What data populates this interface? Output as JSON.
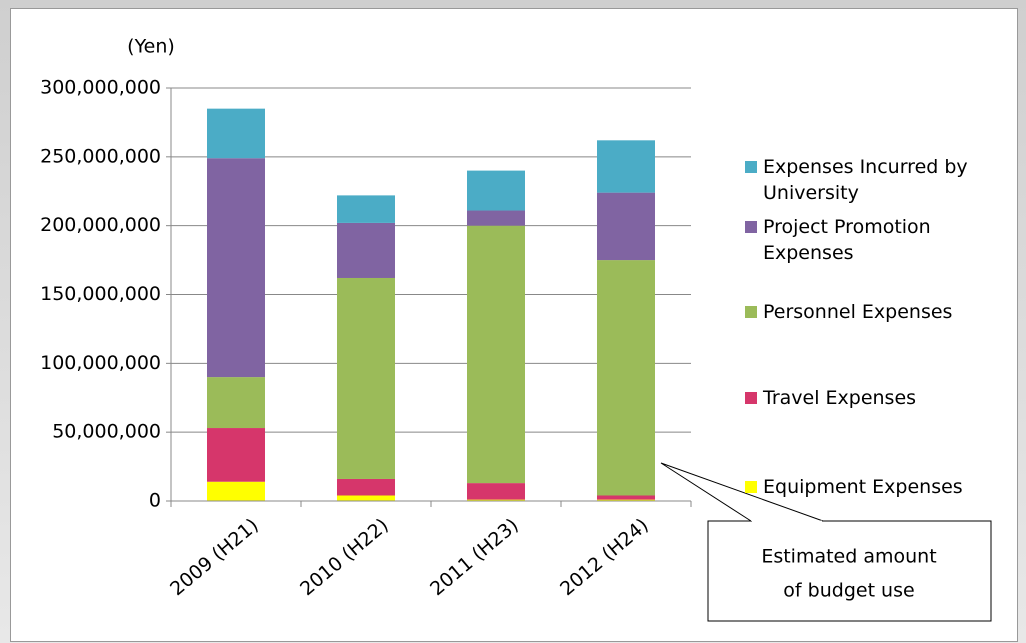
{
  "chart_data": {
    "type": "stacked_bar",
    "y_unit_label": "(Yen)",
    "categories": [
      "2009 (H21)",
      "2010 (H22)",
      "2011 (H23)",
      "2012 (H24)"
    ],
    "series": [
      {
        "name": "Equipment Expenses",
        "color": "#ffff00",
        "values": [
          14000000,
          4000000,
          1000000,
          1000000
        ]
      },
      {
        "name": "Travel Expenses",
        "color": "#d6366b",
        "values": [
          39000000,
          12000000,
          12000000,
          3000000
        ]
      },
      {
        "name": "Personnel Expenses",
        "color": "#9bbb59",
        "values": [
          37000000,
          146000000,
          187000000,
          171000000
        ]
      },
      {
        "name": "Project Promotion Expenses",
        "color": "#8064a2",
        "values": [
          159000000,
          40000000,
          11000000,
          49000000
        ]
      },
      {
        "name": "Expenses Incurred by University",
        "color": "#4bacc6",
        "values": [
          36000000,
          20000000,
          29000000,
          38000000
        ]
      }
    ],
    "ylim": [
      0,
      300000000
    ],
    "yticks": [
      0,
      {
        "value": 50000000,
        "label": "50,000,000"
      },
      {
        "value": 100000000,
        "label": "100,000,000"
      },
      {
        "value": 150000000,
        "label": "150,000,000"
      },
      {
        "value": 200000000,
        "label": "200,000,000"
      },
      {
        "value": 250000000,
        "label": "250,000,000"
      },
      {
        "value": 300000000,
        "label": "300,000,000"
      }
    ],
    "grid": true,
    "annotation": [
      "Estimated amount",
      "of budget use"
    ]
  }
}
